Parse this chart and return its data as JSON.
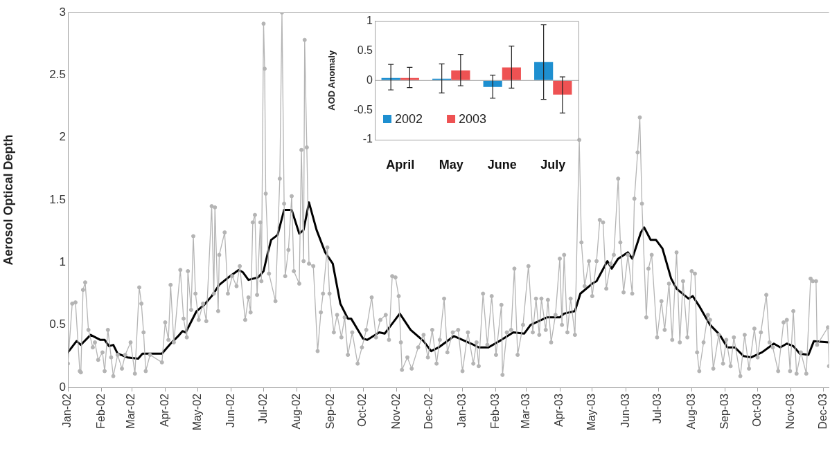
{
  "chart_data": [
    {
      "type": "line",
      "ylabel": "Aerosol Optical Depth",
      "xlim": [
        "2002-01-01",
        "2003-12-06"
      ],
      "ylim": [
        0,
        3
      ],
      "yticks": [
        0,
        0.5,
        1,
        1.5,
        2,
        2.5,
        3
      ],
      "xticks": [
        {
          "value": "2002-01-01",
          "label": "Jan-02"
        },
        {
          "value": "2002-02-01",
          "label": "Feb-02"
        },
        {
          "value": "2002-03-01",
          "label": "Mar-02"
        },
        {
          "value": "2002-04-01",
          "label": "Apr-02"
        },
        {
          "value": "2002-05-01",
          "label": "May-02"
        },
        {
          "value": "2002-06-01",
          "label": "Jun-02"
        },
        {
          "value": "2002-07-01",
          "label": "Jul-02"
        },
        {
          "value": "2002-08-01",
          "label": "Aug-02"
        },
        {
          "value": "2002-09-01",
          "label": "Sep-02"
        },
        {
          "value": "2002-10-01",
          "label": "Oct-02"
        },
        {
          "value": "2002-11-01",
          "label": "Nov-02"
        },
        {
          "value": "2002-12-01",
          "label": "Dec-02"
        },
        {
          "value": "2003-01-01",
          "label": "Jan-03"
        },
        {
          "value": "2003-02-01",
          "label": "Feb-03"
        },
        {
          "value": "2003-03-01",
          "label": "Mar-03"
        },
        {
          "value": "2003-04-01",
          "label": "Apr-03"
        },
        {
          "value": "2003-05-01",
          "label": "May-03"
        },
        {
          "value": "2003-06-01",
          "label": "Jun-03"
        },
        {
          "value": "2003-07-01",
          "label": "Jul-03"
        },
        {
          "value": "2003-08-01",
          "label": "Aug-03"
        },
        {
          "value": "2003-09-01",
          "label": "Sep-03"
        },
        {
          "value": "2003-10-01",
          "label": "Oct-03"
        },
        {
          "value": "2003-11-01",
          "label": "Nov-03"
        },
        {
          "value": "2003-12-01",
          "label": "Dec-03"
        }
      ],
      "series": [
        {
          "color": "#b4b4b4",
          "marker": "circle",
          "x": [
            "2002-01-01",
            "2002-01-05",
            "2002-01-08",
            "2002-01-12",
            "2002-01-13",
            "2002-01-15",
            "2002-01-17",
            "2002-01-20",
            "2002-01-24",
            "2002-01-26",
            "2002-01-29",
            "2002-02-02",
            "2002-02-04",
            "2002-02-07",
            "2002-02-10",
            "2002-02-12",
            "2002-02-16",
            "2002-02-20",
            "2002-02-23",
            "2002-02-28",
            "2002-03-04",
            "2002-03-08",
            "2002-03-10",
            "2002-03-12",
            "2002-03-14",
            "2002-03-18",
            "2002-03-29",
            "2002-04-01",
            "2002-04-04",
            "2002-04-06",
            "2002-04-09",
            "2002-04-15",
            "2002-04-18",
            "2002-04-21",
            "2002-04-22",
            "2002-04-25",
            "2002-04-27",
            "2002-04-29",
            "2002-05-02",
            "2002-05-06",
            "2002-05-09",
            "2002-05-14",
            "2002-05-16",
            "2002-05-17",
            "2002-05-20",
            "2002-05-21",
            "2002-05-26",
            "2002-05-29",
            "2002-06-02",
            "2002-06-06",
            "2002-06-09",
            "2002-06-14",
            "2002-06-17",
            "2002-06-19",
            "2002-06-21",
            "2002-06-23",
            "2002-06-25",
            "2002-06-28",
            "2002-06-29",
            "2002-07-01",
            "2002-07-02",
            "2002-07-03",
            "2002-07-06",
            "2002-07-12",
            "2002-07-16",
            "2002-07-18",
            "2002-07-20",
            "2002-07-21",
            "2002-07-24",
            "2002-07-27",
            "2002-07-29",
            "2002-08-03",
            "2002-08-05",
            "2002-08-07",
            "2002-08-08",
            "2002-08-10",
            "2002-08-12",
            "2002-08-16",
            "2002-08-20",
            "2002-08-23",
            "2002-08-25",
            "2002-08-29",
            "2002-08-31",
            "2002-09-04",
            "2002-09-07",
            "2002-09-11",
            "2002-09-14",
            "2002-09-17",
            "2002-09-21",
            "2002-09-26",
            "2002-09-30",
            "2002-10-04",
            "2002-10-09",
            "2002-10-13",
            "2002-10-17",
            "2002-10-22",
            "2002-10-25",
            "2002-10-28",
            "2002-10-31",
            "2002-11-03",
            "2002-11-05",
            "2002-11-06",
            "2002-11-11",
            "2002-11-15",
            "2002-11-21",
            "2002-11-26",
            "2002-11-30",
            "2002-12-04",
            "2002-12-08",
            "2002-12-11",
            "2002-12-15",
            "2002-12-18",
            "2002-12-23",
            "2002-12-28",
            "2003-01-01",
            "2003-01-06",
            "2003-01-11",
            "2003-01-14",
            "2003-01-16",
            "2003-01-20",
            "2003-01-24",
            "2003-01-28",
            "2003-02-01",
            "2003-02-06",
            "2003-02-07",
            "2003-02-11",
            "2003-02-15",
            "2003-02-18",
            "2003-02-21",
            "2003-02-26",
            "2003-03-03",
            "2003-03-07",
            "2003-03-10",
            "2003-03-13",
            "2003-03-15",
            "2003-03-19",
            "2003-03-21",
            "2003-03-24",
            "2003-03-28",
            "2003-04-01",
            "2003-04-03",
            "2003-04-05",
            "2003-04-08",
            "2003-04-11",
            "2003-04-15",
            "2003-04-19",
            "2003-04-21",
            "2003-04-24",
            "2003-04-28",
            "2003-05-01",
            "2003-05-05",
            "2003-05-08",
            "2003-05-11",
            "2003-05-14",
            "2003-05-18",
            "2003-05-21",
            "2003-05-25",
            "2003-05-27",
            "2003-05-30",
            "2003-06-03",
            "2003-06-07",
            "2003-06-09",
            "2003-06-12",
            "2003-06-14",
            "2003-06-16",
            "2003-06-20",
            "2003-06-22",
            "2003-06-25",
            "2003-06-30",
            "2003-07-04",
            "2003-07-07",
            "2003-07-11",
            "2003-07-14",
            "2003-07-18",
            "2003-07-21",
            "2003-07-24",
            "2003-07-28",
            "2003-08-01",
            "2003-08-04",
            "2003-08-06",
            "2003-08-08",
            "2003-08-12",
            "2003-08-16",
            "2003-08-18",
            "2003-08-21",
            "2003-08-26",
            "2003-08-30",
            "2003-09-02",
            "2003-09-06",
            "2003-09-09",
            "2003-09-15",
            "2003-09-19",
            "2003-09-23",
            "2003-09-28",
            "2003-10-01",
            "2003-10-04",
            "2003-10-09",
            "2003-10-12",
            "2003-10-15",
            "2003-10-20",
            "2003-10-25",
            "2003-10-28",
            "2003-10-31",
            "2003-11-03",
            "2003-11-06",
            "2003-11-10",
            "2003-11-15",
            "2003-11-19",
            "2003-11-21",
            "2003-11-24",
            "2003-11-25",
            "2003-12-05",
            "2003-12-06"
          ],
          "values": [
            0.19,
            0.67,
            0.68,
            0.13,
            0.12,
            0.78,
            0.84,
            0.46,
            0.32,
            0.36,
            0.22,
            0.28,
            0.13,
            0.46,
            0.24,
            0.09,
            0.26,
            0.15,
            0.26,
            0.36,
            0.11,
            0.8,
            0.67,
            0.44,
            0.13,
            0.26,
            0.2,
            0.52,
            0.38,
            0.82,
            0.36,
            0.94,
            0.55,
            0.4,
            0.93,
            0.62,
            1.21,
            0.75,
            0.54,
            0.67,
            0.53,
            1.45,
            0.75,
            1.44,
            0.61,
            1.06,
            1.24,
            0.75,
            0.89,
            0.81,
            0.97,
            0.54,
            0.72,
            0.6,
            1.32,
            1.38,
            0.74,
            1.32,
            0.85,
            2.91,
            2.55,
            1.55,
            0.91,
            0.69,
            1.67,
            3.0,
            1.47,
            0.89,
            1.1,
            1.53,
            0.93,
            0.83,
            1.9,
            1.01,
            2.78,
            1.92,
            0.99,
            0.97,
            0.29,
            0.6,
            0.75,
            1.12,
            0.75,
            0.44,
            0.58,
            0.4,
            0.56,
            0.26,
            0.44,
            0.19,
            0.32,
            0.46,
            0.72,
            0.4,
            0.54,
            0.58,
            0.38,
            0.89,
            0.88,
            0.73,
            0.36,
            0.14,
            0.24,
            0.15,
            0.32,
            0.42,
            0.24,
            0.46,
            0.19,
            0.38,
            0.71,
            0.28,
            0.44,
            0.46,
            0.13,
            0.44,
            0.19,
            0.36,
            0.17,
            0.75,
            0.34,
            0.73,
            0.26,
            0.66,
            0.1,
            0.44,
            0.46,
            0.95,
            0.26,
            0.5,
            0.97,
            0.44,
            0.71,
            0.42,
            0.71,
            0.46,
            0.7,
            0.36,
            0.58,
            1.03,
            0.5,
            1.06,
            0.44,
            0.71,
            0.42,
            1.98,
            1.16,
            0.81,
            1.01,
            0.73,
            1.01,
            1.34,
            1.32,
            0.79,
            0.99,
            1.06,
            1.67,
            1.16,
            0.76,
            1.06,
            0.75,
            1.51,
            1.88,
            2.16,
            1.47,
            0.56,
            0.95,
            1.06,
            0.4,
            0.69,
            0.46,
            0.83,
            0.38,
            1.08,
            0.36,
            0.85,
            0.4,
            0.93,
            0.91,
            0.28,
            0.13,
            0.36,
            0.58,
            0.54,
            0.15,
            0.42,
            0.19,
            0.38,
            0.17,
            0.4,
            0.09,
            0.42,
            0.15,
            0.47,
            0.24,
            0.44,
            0.74,
            0.36,
            0.32,
            0.13,
            0.52,
            0.54,
            0.13,
            0.61,
            0.11,
            0.28,
            0.11,
            0.87,
            0.85,
            0.85,
            0.34,
            0.48,
            0.17
          ]
        },
        {
          "color": "#000000",
          "marker": "none",
          "x": [
            "2002-01-01",
            "2002-01-09",
            "2002-01-13",
            "2002-01-22",
            "2002-01-31",
            "2002-02-04",
            "2002-02-08",
            "2002-02-12",
            "2002-02-16",
            "2002-02-25",
            "2002-03-07",
            "2002-03-11",
            "2002-03-29",
            "2002-04-06",
            "2002-04-13",
            "2002-04-17",
            "2002-04-20",
            "2002-04-30",
            "2002-05-07",
            "2002-05-14",
            "2002-05-21",
            "2002-05-28",
            "2002-06-08",
            "2002-06-12",
            "2002-06-17",
            "2002-06-26",
            "2002-07-01",
            "2002-07-05",
            "2002-07-08",
            "2002-07-14",
            "2002-07-20",
            "2002-07-27",
            "2002-08-03",
            "2002-08-07",
            "2002-08-12",
            "2002-08-19",
            "2002-08-27",
            "2002-09-03",
            "2002-09-10",
            "2002-09-17",
            "2002-09-20",
            "2002-10-01",
            "2002-10-05",
            "2002-10-16",
            "2002-10-21",
            "2002-11-04",
            "2002-11-14",
            "2002-11-26",
            "2002-12-03",
            "2002-12-10",
            "2002-12-24",
            "2003-01-09",
            "2003-01-16",
            "2003-01-25",
            "2003-02-06",
            "2003-02-17",
            "2003-02-27",
            "2003-03-05",
            "2003-03-20",
            "2003-04-01",
            "2003-04-05",
            "2003-04-15",
            "2003-04-20",
            "2003-05-01",
            "2003-05-05",
            "2003-05-15",
            "2003-05-19",
            "2003-05-25",
            "2003-06-03",
            "2003-06-07",
            "2003-06-15",
            "2003-06-18",
            "2003-06-24",
            "2003-06-29",
            "2003-07-05",
            "2003-07-13",
            "2003-07-18",
            "2003-07-29",
            "2003-08-02",
            "2003-08-08",
            "2003-08-18",
            "2003-08-27",
            "2003-09-03",
            "2003-09-10",
            "2003-09-18",
            "2003-09-25",
            "2003-10-05",
            "2003-10-16",
            "2003-10-22",
            "2003-10-28",
            "2003-11-03",
            "2003-11-09",
            "2003-11-17",
            "2003-11-22",
            "2003-12-06"
          ],
          "values": [
            0.28,
            0.37,
            0.34,
            0.42,
            0.38,
            0.38,
            0.33,
            0.34,
            0.27,
            0.24,
            0.23,
            0.27,
            0.27,
            0.35,
            0.41,
            0.45,
            0.44,
            0.61,
            0.66,
            0.73,
            0.82,
            0.87,
            0.94,
            0.92,
            0.86,
            0.88,
            0.93,
            1.08,
            1.18,
            1.22,
            1.42,
            1.42,
            1.23,
            1.26,
            1.48,
            1.26,
            1.08,
            0.99,
            0.67,
            0.55,
            0.55,
            0.39,
            0.38,
            0.44,
            0.43,
            0.59,
            0.46,
            0.37,
            0.29,
            0.32,
            0.41,
            0.35,
            0.32,
            0.32,
            0.38,
            0.44,
            0.43,
            0.5,
            0.56,
            0.56,
            0.59,
            0.61,
            0.75,
            0.83,
            0.85,
            1.01,
            0.95,
            1.03,
            1.08,
            1.03,
            1.24,
            1.28,
            1.18,
            1.18,
            1.11,
            0.87,
            0.79,
            0.71,
            0.73,
            0.65,
            0.5,
            0.42,
            0.32,
            0.32,
            0.25,
            0.24,
            0.28,
            0.35,
            0.32,
            0.35,
            0.33,
            0.27,
            0.26,
            0.37,
            0.36
          ]
        }
      ]
    },
    {
      "type": "bar",
      "ylabel": "AOD Anomaly",
      "categories": [
        "April",
        "May",
        "June",
        "July"
      ],
      "ylim": [
        -1,
        1
      ],
      "yticks": [
        -1,
        -0.5,
        0,
        0.5,
        1
      ],
      "legend": "bottom left",
      "series": [
        {
          "name": "2002",
          "color": "#1e8fd0",
          "values": [
            0.04,
            0.03,
            -0.11,
            0.31
          ],
          "errors": [
            [
              -0.16,
              0.27
            ],
            [
              -0.21,
              0.28
            ],
            [
              -0.3,
              0.09
            ],
            [
              -0.32,
              0.94
            ]
          ]
        },
        {
          "name": "2003",
          "color": "#ee5253",
          "values": [
            0.04,
            0.17,
            0.22,
            -0.24
          ],
          "errors": [
            [
              -0.12,
              0.22
            ],
            [
              -0.09,
              0.44
            ],
            [
              -0.13,
              0.58
            ],
            [
              -0.55,
              0.06
            ]
          ]
        }
      ]
    }
  ]
}
